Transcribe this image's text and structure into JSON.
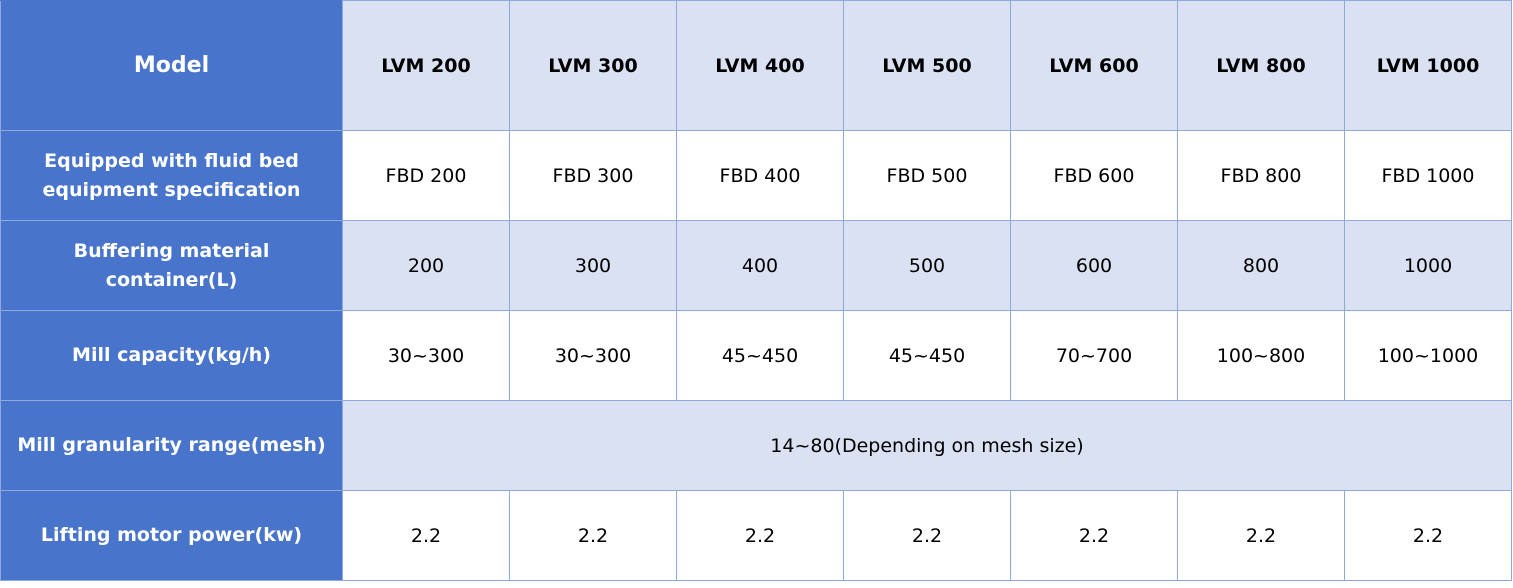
{
  "table": {
    "header": {
      "label": "Model",
      "models": [
        "LVM 200",
        "LVM 300",
        "LVM 400",
        "LVM 500",
        "LVM 600",
        "LVM 800",
        "LVM 1000"
      ]
    },
    "rows": [
      {
        "label": "Equipped with fluid bed equipment specification",
        "values": [
          "FBD 200",
          "FBD 300",
          "FBD 400",
          "FBD 500",
          "FBD 600",
          "FBD 800",
          "FBD 1000"
        ]
      },
      {
        "label": "Buffering material container(L)",
        "values": [
          "200",
          "300",
          "400",
          "500",
          "600",
          "800",
          "1000"
        ]
      },
      {
        "label": "Mill capacity(kg/h)",
        "values": [
          "30~300",
          "30~300",
          "45~450",
          "45~450",
          "70~700",
          "100~800",
          "100~1000"
        ]
      },
      {
        "label": "Mill granularity range(mesh)",
        "merged_value": "14~80(Depending on mesh size)"
      },
      {
        "label": "Lifting motor power(kw)",
        "values": [
          "2.2",
          "2.2",
          "2.2",
          "2.2",
          "2.2",
          "2.2",
          "2.2"
        ]
      }
    ]
  },
  "colors": {
    "row_header_bg": "#4874cb",
    "header_cell_bg": "#d9e1f2",
    "shaded_row_bg": "#d9e1f2",
    "plain_row_bg": "#ffffff",
    "grid_line": "#8eaadb"
  }
}
